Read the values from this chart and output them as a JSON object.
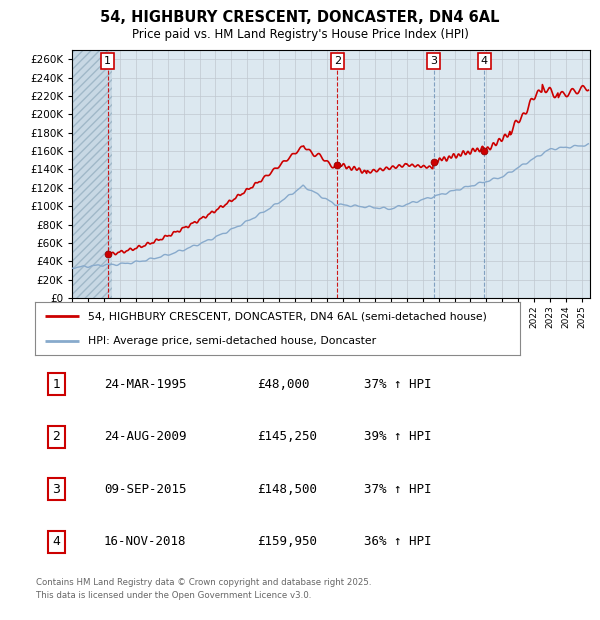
{
  "title": "54, HIGHBURY CRESCENT, DONCASTER, DN4 6AL",
  "subtitle": "Price paid vs. HM Land Registry's House Price Index (HPI)",
  "ylim": [
    0,
    270000
  ],
  "yticks": [
    0,
    20000,
    40000,
    60000,
    80000,
    100000,
    120000,
    140000,
    160000,
    180000,
    200000,
    220000,
    240000,
    260000
  ],
  "background_chart": "#dce8f0",
  "grid_color": "#c0c8d0",
  "purchase_color": "#cc0000",
  "hpi_color": "#88aacc",
  "purchases": [
    {
      "date_num": 1995.23,
      "price": 48000,
      "label": "1"
    },
    {
      "date_num": 2009.65,
      "price": 145250,
      "label": "2"
    },
    {
      "date_num": 2015.69,
      "price": 148500,
      "label": "3"
    },
    {
      "date_num": 2018.88,
      "price": 159950,
      "label": "4"
    }
  ],
  "vline_dates_red": [
    1995.23,
    2009.65
  ],
  "vline_dates_blue": [
    2015.69,
    2018.88
  ],
  "table_rows": [
    {
      "num": "1",
      "date": "24-MAR-1995",
      "price": "£48,000",
      "hpi": "37% ↑ HPI"
    },
    {
      "num": "2",
      "date": "24-AUG-2009",
      "price": "£145,250",
      "hpi": "39% ↑ HPI"
    },
    {
      "num": "3",
      "date": "09-SEP-2015",
      "price": "£148,500",
      "hpi": "37% ↑ HPI"
    },
    {
      "num": "4",
      "date": "16-NOV-2018",
      "price": "£159,950",
      "hpi": "36% ↑ HPI"
    }
  ],
  "legend_line1": "54, HIGHBURY CRESCENT, DONCASTER, DN4 6AL (semi-detached house)",
  "legend_line2": "HPI: Average price, semi-detached house, Doncaster",
  "footer": "Contains HM Land Registry data © Crown copyright and database right 2025.\nThis data is licensed under the Open Government Licence v3.0.",
  "xmin": 1993.0,
  "xmax": 2025.5
}
